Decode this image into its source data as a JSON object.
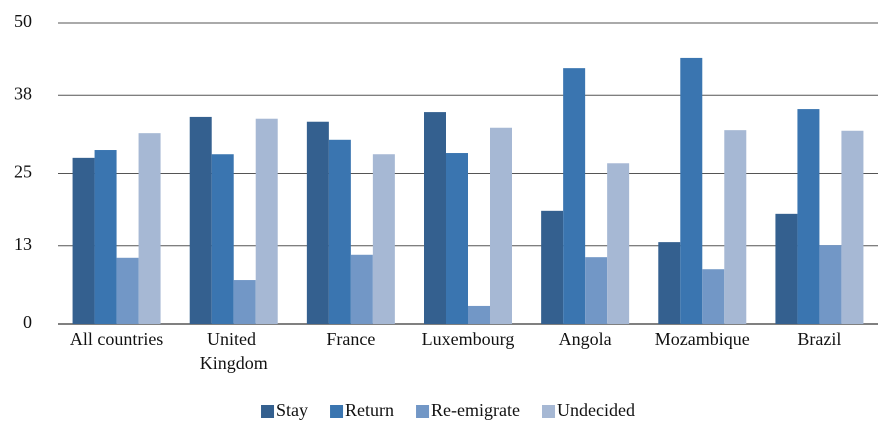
{
  "chart_data": {
    "type": "bar",
    "categories": [
      "All countries",
      "United Kingdom",
      "France",
      "Luxembourg",
      "Angola",
      "Mozambique",
      "Brazil"
    ],
    "series": [
      {
        "name": "Stay",
        "color": "#34608f",
        "values": [
          27.6,
          34.4,
          33.6,
          35.2,
          18.8,
          13.6,
          18.3
        ]
      },
      {
        "name": "Return",
        "color": "#3a75b0",
        "values": [
          28.9,
          28.2,
          30.6,
          28.4,
          42.5,
          44.2,
          35.7
        ]
      },
      {
        "name": "Re-emigrate",
        "color": "#7297c6",
        "values": [
          11.0,
          7.3,
          11.5,
          3.0,
          11.1,
          9.1,
          13.1
        ]
      },
      {
        "name": "Undecided",
        "color": "#a6b8d4",
        "values": [
          31.7,
          34.1,
          28.2,
          32.6,
          26.7,
          32.2,
          32.1
        ]
      }
    ],
    "ylim": [
      0,
      50
    ],
    "yticks": [
      0,
      13,
      25,
      38,
      50
    ],
    "grid": true,
    "legend": "bottom"
  }
}
